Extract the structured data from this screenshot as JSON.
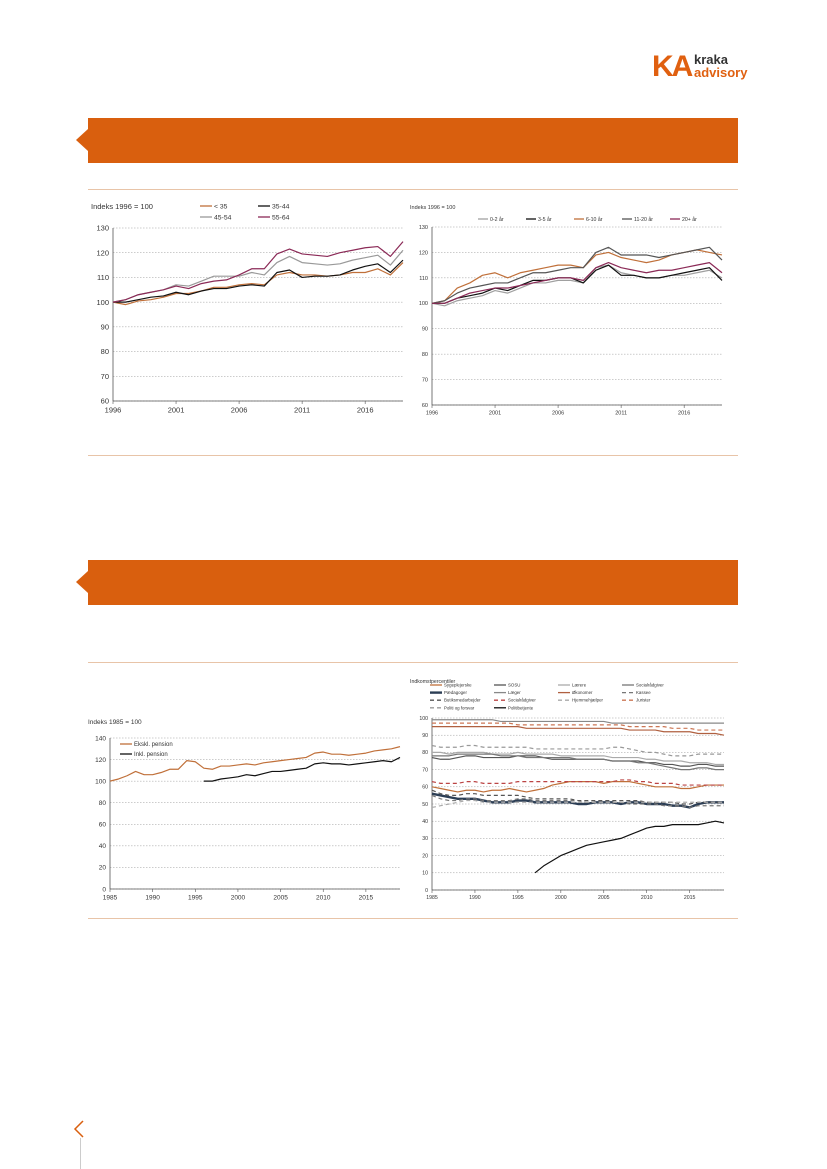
{
  "logo": {
    "mark": "KA",
    "word1": "kraka",
    "word2": "advisory"
  },
  "colors": {
    "accent": "#d95f0e",
    "rule": "#e8c4a8"
  },
  "chart_data": [
    {
      "type": "line",
      "ylabel": "Indeks 1996 = 100",
      "ylim": [
        60,
        130
      ],
      "yticks": [
        60,
        70,
        80,
        90,
        100,
        110,
        120,
        130
      ],
      "xlim": [
        1996,
        2019
      ],
      "xticks": [
        1996,
        2001,
        2006,
        2011,
        2016
      ],
      "x": [
        1996,
        1997,
        1998,
        1999,
        2000,
        2001,
        2002,
        2003,
        2004,
        2005,
        2006,
        2007,
        2008,
        2009,
        2010,
        2011,
        2012,
        2013,
        2014,
        2015,
        2016,
        2017,
        2018,
        2019
      ],
      "series": [
        {
          "name": "< 35",
          "color": "#c0703a",
          "values": [
            100,
            99,
            100.5,
            101,
            102,
            103.5,
            103.5,
            104.5,
            106,
            106,
            107,
            107.5,
            107,
            111,
            112,
            111,
            111,
            110.5,
            111,
            112,
            112,
            113.5,
            111,
            116
          ]
        },
        {
          "name": "35-44",
          "color": "#111111",
          "values": [
            100,
            100,
            101,
            102,
            102.5,
            104,
            103,
            104.5,
            105.5,
            105.5,
            106.5,
            107,
            106.5,
            112,
            113,
            110,
            110.5,
            110.5,
            111,
            113,
            114.5,
            115.5,
            112,
            117
          ]
        },
        {
          "name": "45-54",
          "color": "#999999",
          "values": [
            100,
            101,
            103,
            104,
            105,
            107,
            106.5,
            108.5,
            110.5,
            110.5,
            110.5,
            112,
            111,
            116,
            118.5,
            116,
            115.5,
            115,
            115.5,
            117,
            118,
            119,
            115,
            121
          ]
        },
        {
          "name": "55-64",
          "color": "#8b2a57",
          "values": [
            100,
            101,
            103,
            104,
            105,
            106.5,
            105.5,
            107.5,
            108.5,
            109,
            111,
            113.5,
            113.5,
            119.5,
            121.5,
            119.5,
            119,
            118.5,
            120,
            121,
            122,
            122.5,
            118.5,
            124.5
          ]
        }
      ]
    },
    {
      "type": "line",
      "ylabel": "Indeks 1996 = 100",
      "ylim": [
        60,
        130
      ],
      "yticks": [
        60,
        70,
        80,
        90,
        100,
        110,
        120,
        130
      ],
      "xlim": [
        1996,
        2019
      ],
      "xticks": [
        1996,
        2001,
        2006,
        2011,
        2016
      ],
      "x": [
        1996,
        1997,
        1998,
        1999,
        2000,
        2001,
        2002,
        2003,
        2004,
        2005,
        2006,
        2007,
        2008,
        2009,
        2010,
        2011,
        2012,
        2013,
        2014,
        2015,
        2016,
        2017,
        2018,
        2019
      ],
      "series": [
        {
          "name": "0-2 år",
          "color": "#a0a0a0",
          "values": [
            100,
            99,
            101,
            102,
            103,
            105,
            104,
            106,
            108,
            108,
            109,
            109,
            108,
            114,
            115,
            112,
            111,
            110,
            110,
            111,
            111,
            112,
            113,
            110
          ]
        },
        {
          "name": "3-5 år",
          "color": "#111111",
          "values": [
            100,
            100,
            102,
            103,
            104,
            106,
            105,
            107,
            109,
            109,
            110,
            110,
            108,
            113,
            115,
            111,
            111,
            110,
            110,
            111,
            112,
            113,
            114,
            109
          ]
        },
        {
          "name": "6-10 år",
          "color": "#c0703a",
          "values": [
            100,
            101,
            106,
            108,
            111,
            112,
            110,
            112,
            113,
            114,
            115,
            115,
            114,
            119,
            120,
            118,
            117,
            116,
            117,
            119,
            120,
            121,
            120,
            119
          ]
        },
        {
          "name": "11-20 år",
          "color": "#555555",
          "values": [
            100,
            101,
            104,
            106,
            107,
            108,
            108,
            110,
            112,
            112,
            113,
            114,
            114,
            120,
            122,
            119,
            119,
            119,
            118,
            119,
            120,
            121,
            122,
            117
          ]
        },
        {
          "name": "20+ år",
          "color": "#8b2a57",
          "values": [
            100,
            100,
            102,
            104,
            105,
            106,
            106,
            107,
            108,
            109,
            110,
            110,
            109,
            114,
            116,
            114,
            113,
            112,
            113,
            113,
            114,
            115,
            116,
            112
          ]
        }
      ]
    },
    {
      "type": "line",
      "ylabel": "Indeks 1985 = 100",
      "ylim": [
        0,
        140
      ],
      "yticks": [
        0,
        20,
        40,
        60,
        80,
        100,
        120,
        140
      ],
      "xlim": [
        1985,
        2019
      ],
      "xticks": [
        1985,
        1990,
        1995,
        2000,
        2005,
        2010,
        2015
      ],
      "x": [
        1985,
        1986,
        1987,
        1988,
        1989,
        1990,
        1991,
        1992,
        1993,
        1994,
        1995,
        1996,
        1997,
        1998,
        1999,
        2000,
        2001,
        2002,
        2003,
        2004,
        2005,
        2006,
        2007,
        2008,
        2009,
        2010,
        2011,
        2012,
        2013,
        2014,
        2015,
        2016,
        2017,
        2018,
        2019
      ],
      "series": [
        {
          "name": "Ekskl. pension",
          "color": "#c0703a",
          "values": [
            100,
            102,
            105,
            109,
            106,
            106,
            108,
            111,
            111,
            119,
            118,
            112,
            111,
            114,
            114,
            115,
            116,
            115,
            117,
            118,
            119,
            120,
            121,
            122,
            126,
            127,
            125,
            125,
            124,
            125,
            126,
            128,
            129,
            130,
            132
          ]
        },
        {
          "name": "Inkl. pension",
          "color": "#111111",
          "values": [
            null,
            null,
            null,
            null,
            null,
            null,
            null,
            null,
            null,
            null,
            null,
            100,
            100,
            102,
            103,
            104,
            106,
            105,
            107,
            109,
            109,
            110,
            111,
            112,
            116,
            117,
            116,
            116,
            115,
            116,
            117,
            118,
            119,
            118,
            122
          ]
        }
      ]
    },
    {
      "type": "line",
      "ylabel": "Indkomstpercentiler",
      "ylim": [
        0,
        100
      ],
      "yticks": [
        0,
        10,
        20,
        30,
        40,
        50,
        60,
        70,
        80,
        90,
        100
      ],
      "xlim": [
        1985,
        2019
      ],
      "xticks": [
        1985,
        1990,
        1995,
        2000,
        2005,
        2010,
        2015
      ],
      "legend_placement": "top",
      "x": [
        1985,
        1986,
        1987,
        1988,
        1989,
        1990,
        1991,
        1992,
        1993,
        1994,
        1995,
        1996,
        1997,
        1998,
        1999,
        2000,
        2001,
        2002,
        2003,
        2004,
        2005,
        2006,
        2007,
        2008,
        2009,
        2010,
        2011,
        2012,
        2013,
        2014,
        2015,
        2016,
        2017,
        2018,
        2019
      ],
      "series": [
        {
          "name": "Sygeplejerske",
          "color": "#c0703a",
          "dash": "",
          "values": [
            60,
            59,
            58,
            57,
            58,
            58,
            57,
            58,
            58,
            59,
            58,
            57,
            58,
            59,
            61,
            62,
            63,
            63,
            63,
            63,
            62,
            63,
            63,
            63,
            62,
            61,
            60,
            60,
            60,
            59,
            59,
            60,
            61,
            61,
            61
          ]
        },
        {
          "name": "SOSU",
          "color": "#555555",
          "dash": "",
          "values": [
            77,
            76,
            76,
            77,
            78,
            78,
            77,
            77,
            77,
            77,
            78,
            78,
            78,
            77,
            76,
            76,
            76,
            76,
            76,
            76,
            76,
            75,
            75,
            75,
            75,
            74,
            74,
            73,
            73,
            72,
            72,
            73,
            73,
            72,
            72
          ]
        },
        {
          "name": "Lærere",
          "color": "#aaaaaa",
          "dash": "",
          "values": [
            80,
            80,
            79,
            80,
            80,
            80,
            80,
            79,
            79,
            79,
            80,
            79,
            79,
            79,
            79,
            78,
            78,
            78,
            78,
            78,
            78,
            77,
            77,
            77,
            77,
            76,
            76,
            75,
            75,
            75,
            74,
            74,
            74,
            73,
            73
          ]
        },
        {
          "name": "Socialrådgiver",
          "color": "#777777",
          "dash": "",
          "values": [
            78,
            78,
            78,
            79,
            79,
            79,
            79,
            79,
            78,
            78,
            78,
            77,
            77,
            77,
            77,
            77,
            77,
            76,
            76,
            76,
            76,
            75,
            75,
            75,
            74,
            74,
            73,
            72,
            71,
            70,
            70,
            71,
            71,
            70,
            70
          ]
        },
        {
          "name": "Pædagoger",
          "color": "#2c3e55",
          "dash": "",
          "width": 2.4,
          "values": [
            56,
            55,
            54,
            53,
            53,
            53,
            52,
            51,
            51,
            51,
            52,
            52,
            51,
            51,
            51,
            51,
            51,
            50,
            50,
            51,
            51,
            51,
            50,
            51,
            51,
            50,
            50,
            50,
            49,
            49,
            48,
            50,
            51,
            51,
            51
          ]
        },
        {
          "name": "Læger",
          "color": "#888888",
          "dash": "",
          "values": [
            99,
            99,
            99,
            99,
            99,
            99,
            99,
            99,
            98,
            98,
            98,
            98,
            98,
            98,
            98,
            98,
            98,
            98,
            98,
            98,
            98,
            97,
            97,
            97,
            97,
            97,
            97,
            97,
            97,
            97,
            97,
            97,
            97,
            97,
            97
          ]
        },
        {
          "name": "Økonomer",
          "color": "#b06040",
          "dash": "",
          "values": [
            95,
            95,
            95,
            95,
            95,
            95,
            95,
            95,
            95,
            95,
            95,
            94,
            94,
            94,
            94,
            94,
            94,
            94,
            94,
            94,
            94,
            94,
            94,
            93,
            93,
            93,
            93,
            92,
            92,
            92,
            92,
            91,
            91,
            91,
            90
          ]
        },
        {
          "name": "Kassee",
          "color": "#777777",
          "dash": "4,3",
          "values": [
            55,
            53,
            52,
            52,
            53,
            53,
            52,
            52,
            52,
            52,
            53,
            53,
            52,
            52,
            52,
            52,
            52,
            52,
            51,
            51,
            51,
            51,
            51,
            50,
            50,
            50,
            50,
            49,
            49,
            49,
            48,
            49,
            49,
            49,
            49
          ]
        },
        {
          "name": "Butiksmedarbejder",
          "color": "#555555",
          "dash": "4,3",
          "values": [
            58,
            56,
            55,
            55,
            56,
            56,
            55,
            55,
            55,
            55,
            55,
            54,
            53,
            53,
            53,
            53,
            53,
            52,
            52,
            52,
            52,
            52,
            52,
            52,
            52,
            51,
            51,
            51,
            51,
            50,
            50,
            51,
            51,
            51,
            51
          ]
        },
        {
          "name": "Socialrådgiver",
          "color": "#bb4444",
          "dash": "4,3",
          "values": [
            63,
            62,
            62,
            62,
            63,
            63,
            62,
            62,
            62,
            62,
            63,
            63,
            63,
            63,
            63,
            63,
            63,
            63,
            63,
            63,
            63,
            63,
            64,
            64,
            63,
            63,
            62,
            62,
            62,
            61,
            61,
            61,
            61,
            61,
            61
          ]
        },
        {
          "name": "Hjemmehjælper",
          "color": "#aaaaaa",
          "dash": "4,3",
          "values": [
            48,
            49,
            50,
            51,
            52,
            52,
            51,
            51,
            51,
            51,
            51,
            51,
            51,
            51,
            51,
            51,
            51,
            51,
            51,
            51,
            51,
            51,
            51,
            51,
            51,
            51,
            51,
            51,
            51,
            51,
            51,
            51,
            51,
            51,
            51
          ]
        },
        {
          "name": "Jurister",
          "color": "#cc7755",
          "dash": "4,3",
          "values": [
            97,
            97,
            97,
            97,
            97,
            97,
            97,
            97,
            97,
            97,
            96,
            96,
            96,
            96,
            96,
            96,
            96,
            96,
            96,
            96,
            96,
            96,
            96,
            95,
            95,
            95,
            95,
            95,
            94,
            94,
            94,
            93,
            93,
            93,
            93
          ]
        },
        {
          "name": "Politi og forsvar",
          "color": "#999999",
          "dash": "4,3",
          "values": [
            84,
            83,
            83,
            83,
            84,
            84,
            83,
            83,
            83,
            83,
            83,
            83,
            82,
            82,
            82,
            82,
            82,
            82,
            82,
            82,
            82,
            83,
            83,
            82,
            81,
            80,
            80,
            79,
            78,
            78,
            78,
            79,
            79,
            79,
            79
          ]
        },
        {
          "name": "Politibetjente",
          "color": "#111111",
          "dash": "",
          "values": [
            null,
            null,
            null,
            null,
            null,
            null,
            null,
            null,
            null,
            null,
            null,
            null,
            10,
            14,
            17,
            20,
            22,
            24,
            26,
            27,
            28,
            29,
            30,
            32,
            34,
            36,
            37,
            37,
            38,
            38,
            38,
            38,
            39,
            40,
            39
          ]
        }
      ]
    }
  ]
}
